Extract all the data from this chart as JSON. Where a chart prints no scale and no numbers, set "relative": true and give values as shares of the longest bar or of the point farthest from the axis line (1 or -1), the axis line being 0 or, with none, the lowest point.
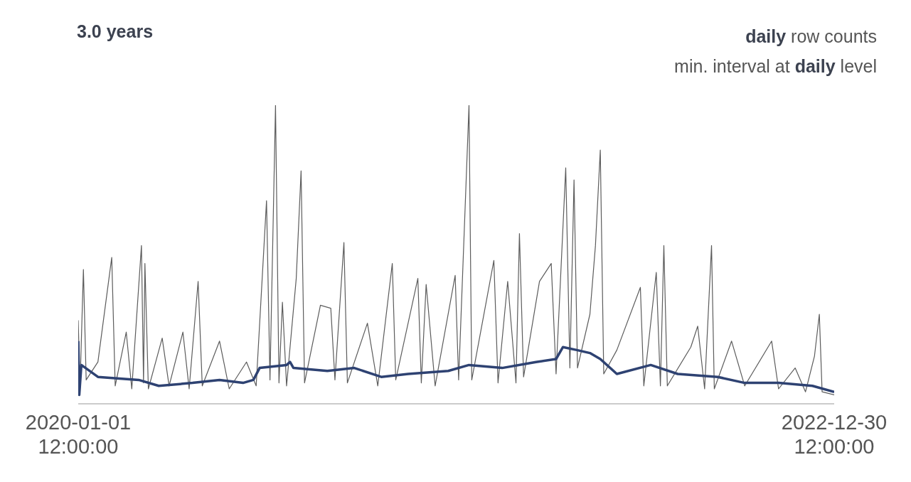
{
  "chart_data": {
    "type": "line",
    "title": "3.0 years",
    "subtitle": "daily row counts",
    "annotations": [
      "min. interval at daily level"
    ],
    "relative": true,
    "grid": false,
    "legend": false,
    "marker": "none",
    "line_style": "solid",
    "xlim": [
      "2020-01-01T12:00",
      "2022-12-30T12:00"
    ],
    "xticks": [
      {
        "value": "2020-01-01T12:00",
        "label": "2020-01-01\n12:00:00"
      },
      {
        "value": "2022-12-30T12:00",
        "label": "2022-12-30\n12:00:00"
      }
    ],
    "series": [
      {
        "color": "#5c5c5c",
        "x": [
          "2020-01-01T12:00",
          "2020-01-04",
          "2020-01-09",
          "2020-01-13",
          "2020-01-30",
          "2020-02-19",
          "2020-02-24",
          "2020-03-11",
          "2020-03-19",
          "2020-04-02",
          "2020-04-05",
          "2020-04-07",
          "2020-04-12",
          "2020-05-02",
          "2020-05-12",
          "2020-06-01",
          "2020-06-10",
          "2020-06-23",
          "2020-06-29",
          "2020-07-24",
          "2020-08-07",
          "2020-09-01",
          "2020-09-15",
          "2020-09-30",
          "2020-10-05",
          "2020-10-13",
          "2020-10-18",
          "2020-10-23",
          "2020-10-29",
          "2020-11-12",
          "2020-11-19",
          "2020-11-24",
          "2020-12-17",
          "2021-01-01",
          "2021-01-07",
          "2021-01-20",
          "2021-01-25",
          "2021-02-23",
          "2021-03-10",
          "2021-03-31",
          "2021-04-05",
          "2021-05-07",
          "2021-05-12",
          "2021-05-19",
          "2021-06-01",
          "2021-06-30",
          "2021-07-05",
          "2021-07-20",
          "2021-07-24",
          "2021-08-25",
          "2021-08-31",
          "2021-09-14",
          "2021-09-26",
          "2021-10-01",
          "2021-10-07",
          "2021-10-30",
          "2021-11-16",
          "2021-11-23",
          "2021-12-07",
          "2021-12-13",
          "2021-12-19",
          "2021-12-24",
          "2022-01-11",
          "2022-01-19",
          "2022-01-26",
          "2022-01-31",
          "2022-02-19",
          "2022-03-25",
          "2022-03-30",
          "2022-04-17",
          "2022-04-23",
          "2022-04-28",
          "2022-05-03",
          "2022-06-06",
          "2022-06-16",
          "2022-06-26",
          "2022-07-06",
          "2022-07-10",
          "2022-08-04",
          "2022-08-23",
          "2022-10-01",
          "2022-10-11",
          "2022-11-04",
          "2022-11-19",
          "2022-12-02",
          "2022-12-09",
          "2022-12-13",
          "2022-12-30T12:00"
        ],
        "values": [
          0.28,
          0.05,
          0.45,
          0.08,
          0.14,
          0.49,
          0.06,
          0.24,
          0.05,
          0.53,
          0.07,
          0.47,
          0.05,
          0.22,
          0.06,
          0.24,
          0.05,
          0.41,
          0.06,
          0.21,
          0.05,
          0.14,
          0.06,
          0.68,
          0.08,
          1,
          0.07,
          0.34,
          0.06,
          0.42,
          0.78,
          0.07,
          0.33,
          0.32,
          0.08,
          0.54,
          0.07,
          0.27,
          0.06,
          0.47,
          0.08,
          0.42,
          0.07,
          0.4,
          0.06,
          0.43,
          0.08,
          1,
          0.08,
          0.48,
          0.07,
          0.41,
          0.07,
          0.57,
          0.09,
          0.41,
          0.47,
          0.1,
          0.79,
          0.12,
          0.75,
          0.12,
          0.3,
          0.53,
          0.85,
          0.1,
          0.18,
          0.39,
          0.06,
          0.44,
          0.06,
          0.53,
          0.06,
          0.19,
          0.26,
          0.05,
          0.53,
          0.05,
          0.21,
          0.06,
          0.21,
          0.05,
          0.12,
          0.04,
          0.16,
          0.3,
          0.04,
          0.03
        ]
      },
      {
        "color": "#2e4272",
        "x": [
          "2020-01-01T12:00",
          "2020-01-03",
          "2020-01-06",
          "2020-01-30",
          "2020-03-29",
          "2020-04-27",
          "2020-06-15",
          "2020-07-24",
          "2020-08-27",
          "2020-09-11",
          "2020-09-20",
          "2020-10-29",
          "2020-11-03",
          "2020-11-08",
          "2020-12-27",
          "2021-02-04",
          "2021-03-15",
          "2021-04-23",
          "2021-06-20",
          "2021-07-20",
          "2021-09-06",
          "2021-10-25",
          "2021-11-23",
          "2021-12-03",
          "2021-12-23",
          "2022-01-11",
          "2022-01-26",
          "2022-02-19",
          "2022-04-09",
          "2022-05-18",
          "2022-07-15",
          "2022-08-23",
          "2022-10-11",
          "2022-11-29",
          "2022-12-30T12:00"
        ],
        "values": [
          0.21,
          0.03,
          0.13,
          0.09,
          0.08,
          0.06,
          0.07,
          0.08,
          0.07,
          0.08,
          0.12,
          0.13,
          0.14,
          0.12,
          0.11,
          0.12,
          0.09,
          0.1,
          0.11,
          0.13,
          0.12,
          0.14,
          0.15,
          0.19,
          0.18,
          0.17,
          0.15,
          0.1,
          0.13,
          0.1,
          0.09,
          0.07,
          0.07,
          0.06,
          0.04
        ]
      }
    ]
  }
}
